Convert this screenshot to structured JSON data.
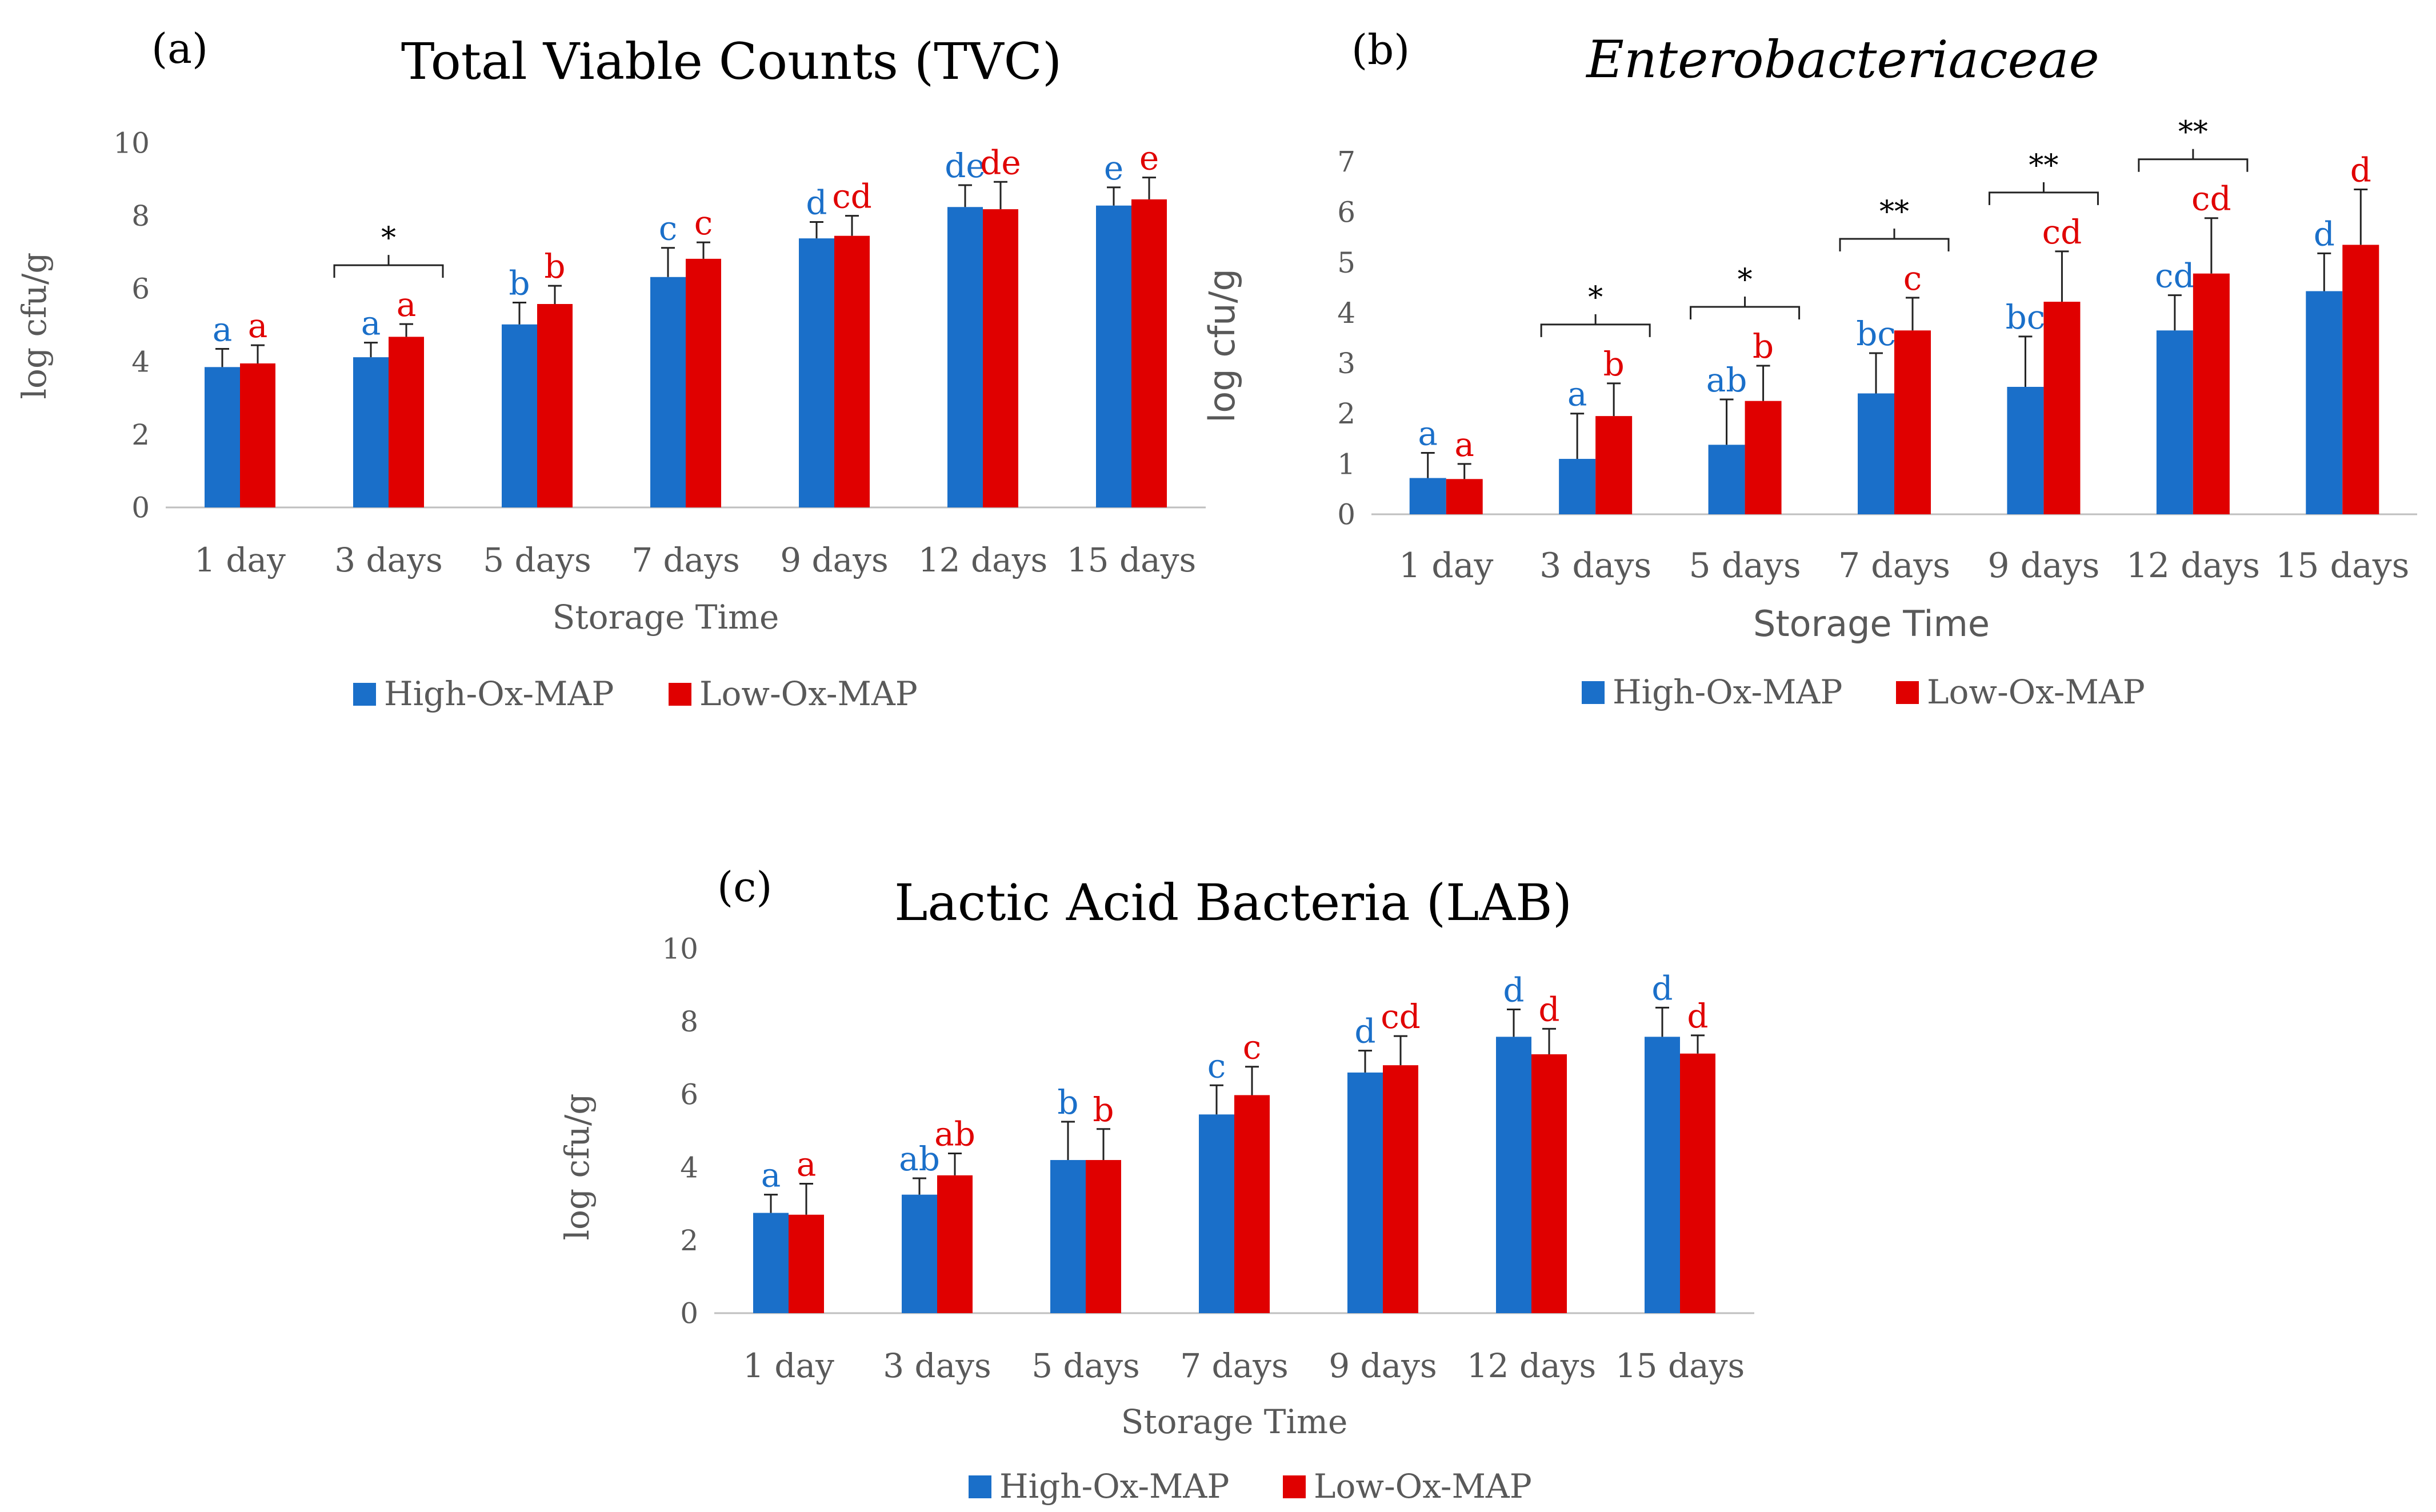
{
  "colors": {
    "high": "#1a6fc9",
    "low": "#e00000",
    "axis": "#bfbfbf",
    "text": "#595959",
    "title": "#000000"
  },
  "chart_data": [
    {
      "type": "bar",
      "panel_label": "(a)",
      "title": "Total Viable Counts (TVC)",
      "title_italic": false,
      "xlabel": "Storage Time",
      "ylabel": "log cfu/g",
      "ylim": [
        0,
        10
      ],
      "yticks": [
        0,
        2,
        4,
        6,
        8,
        10
      ],
      "categories": [
        "1 day",
        "3 days",
        "5 days",
        "7 days",
        "9 days",
        "12 days",
        "15 days"
      ],
      "series": [
        {
          "name": "High-Ox-MAP",
          "values": [
            3.85,
            4.12,
            5.02,
            6.32,
            7.38,
            8.24,
            8.28
          ],
          "errors": [
            0.5,
            0.4,
            0.6,
            0.8,
            0.45,
            0.6,
            0.5
          ],
          "letters": [
            "a",
            "a",
            "b",
            "c",
            "d",
            "de",
            "e"
          ]
        },
        {
          "name": "Low-Ox-MAP",
          "values": [
            3.95,
            4.68,
            5.58,
            6.82,
            7.45,
            8.18,
            8.45
          ],
          "errors": [
            0.5,
            0.35,
            0.5,
            0.45,
            0.55,
            0.75,
            0.6
          ],
          "letters": [
            "a",
            "a",
            "b",
            "c",
            "cd",
            "de",
            "e"
          ]
        }
      ],
      "significance": [
        {
          "category_index": 1,
          "marker": "*"
        }
      ]
    },
    {
      "type": "bar",
      "panel_label": "(b)",
      "title": "Enterobacteriaceae",
      "title_italic": true,
      "xlabel": "Storage Time",
      "ylabel": "log cfu/g",
      "ylim": [
        0,
        7
      ],
      "yticks": [
        0,
        1,
        2,
        3,
        4,
        5,
        6,
        7
      ],
      "categories": [
        "1 day",
        "3 days",
        "5 days",
        "7 days",
        "9 days",
        "12 days",
        "15 days"
      ],
      "series": [
        {
          "name": "High-Ox-MAP",
          "values": [
            0.72,
            1.1,
            1.38,
            2.4,
            2.53,
            3.65,
            4.43
          ],
          "errors": [
            0.5,
            0.9,
            0.9,
            0.8,
            1.0,
            0.7,
            0.75
          ],
          "letters": [
            "a",
            "a",
            "ab",
            "bc",
            "bc",
            "cd",
            "d"
          ]
        },
        {
          "name": "Low-Ox-MAP",
          "values": [
            0.7,
            1.95,
            2.25,
            3.65,
            4.22,
            4.78,
            5.35
          ],
          "errors": [
            0.3,
            0.65,
            0.7,
            0.65,
            1.0,
            1.1,
            1.1
          ],
          "letters": [
            "a",
            "b",
            "b",
            "c",
            "cd",
            "cd",
            "d"
          ]
        }
      ],
      "significance": [
        {
          "category_index": 1,
          "marker": "*"
        },
        {
          "category_index": 2,
          "marker": "*"
        },
        {
          "category_index": 3,
          "marker": "**"
        },
        {
          "category_index": 4,
          "marker": "**"
        },
        {
          "category_index": 5,
          "marker": "**"
        }
      ]
    },
    {
      "type": "bar",
      "panel_label": "(c)",
      "title": "Lactic Acid Bacteria (LAB)",
      "title_italic": false,
      "xlabel": "Storage Time",
      "ylabel": "log cfu/g",
      "ylim": [
        0,
        10
      ],
      "yticks": [
        0,
        2,
        4,
        6,
        8,
        10
      ],
      "categories": [
        "1 day",
        "3 days",
        "5 days",
        "7 days",
        "9 days",
        "12 days",
        "15 days"
      ],
      "series": [
        {
          "name": "High-Ox-MAP",
          "values": [
            2.75,
            3.25,
            4.2,
            5.45,
            6.6,
            7.58,
            7.58
          ],
          "errors": [
            0.5,
            0.45,
            1.05,
            0.8,
            0.6,
            0.75,
            0.8
          ],
          "letters": [
            "a",
            "ab",
            "b",
            "c",
            "d",
            "d",
            "d"
          ]
        },
        {
          "name": "Low-Ox-MAP",
          "values": [
            2.7,
            3.78,
            4.2,
            5.98,
            6.8,
            7.1,
            7.12
          ],
          "errors": [
            0.85,
            0.6,
            0.85,
            0.78,
            0.8,
            0.7,
            0.5
          ],
          "letters": [
            "a",
            "ab",
            "b",
            "c",
            "cd",
            "d",
            "d"
          ]
        }
      ],
      "significance": []
    }
  ]
}
